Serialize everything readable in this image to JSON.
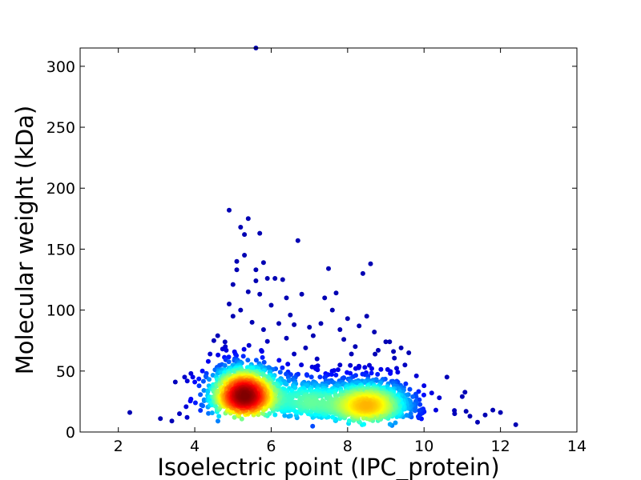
{
  "chart_data": {
    "type": "scatter",
    "title": "",
    "xlabel": "Isoelectric point (IPC_protein)",
    "ylabel": "Molecular weight (kDa)",
    "xlim": [
      1,
      14
    ],
    "ylim": [
      0,
      315
    ],
    "x_ticks": [
      2,
      4,
      6,
      8,
      10,
      12,
      14
    ],
    "y_ticks": [
      0,
      50,
      100,
      150,
      200,
      250,
      300
    ],
    "grid": false,
    "legend": "none",
    "color_scale": "jet (point density: blue = low, red = high)",
    "density_peaks": [
      {
        "x": 5.3,
        "y": 30
      },
      {
        "x": 8.5,
        "y": 22
      }
    ],
    "points": [
      [
        2.3,
        16
      ],
      [
        3.1,
        11
      ],
      [
        3.4,
        9
      ],
      [
        3.6,
        15
      ],
      [
        3.8,
        12
      ],
      [
        3.9,
        27
      ],
      [
        3.9,
        48
      ],
      [
        4.0,
        41
      ],
      [
        4.2,
        50
      ],
      [
        4.3,
        45
      ],
      [
        4.4,
        64
      ],
      [
        4.5,
        75
      ],
      [
        4.6,
        79
      ],
      [
        4.8,
        70
      ],
      [
        4.9,
        105
      ],
      [
        4.9,
        182
      ],
      [
        5.0,
        95
      ],
      [
        5.0,
        121
      ],
      [
        5.1,
        133
      ],
      [
        5.1,
        140
      ],
      [
        5.2,
        100
      ],
      [
        5.2,
        168
      ],
      [
        5.3,
        145
      ],
      [
        5.3,
        162
      ],
      [
        5.4,
        175
      ],
      [
        5.4,
        115
      ],
      [
        5.5,
        90
      ],
      [
        5.6,
        133
      ],
      [
        5.6,
        124
      ],
      [
        5.7,
        163
      ],
      [
        5.7,
        113
      ],
      [
        5.8,
        139
      ],
      [
        5.8,
        84
      ],
      [
        5.9,
        126
      ],
      [
        6.0,
        104
      ],
      [
        6.1,
        126
      ],
      [
        6.2,
        89
      ],
      [
        6.3,
        125
      ],
      [
        6.4,
        110
      ],
      [
        6.4,
        77
      ],
      [
        6.5,
        96
      ],
      [
        6.6,
        88
      ],
      [
        6.7,
        157
      ],
      [
        6.8,
        113
      ],
      [
        6.9,
        69
      ],
      [
        7.0,
        86
      ],
      [
        7.1,
        79
      ],
      [
        7.2,
        60
      ],
      [
        7.3,
        89
      ],
      [
        7.4,
        110
      ],
      [
        7.5,
        134
      ],
      [
        7.6,
        100
      ],
      [
        7.7,
        114
      ],
      [
        7.8,
        84
      ],
      [
        7.9,
        76
      ],
      [
        8.0,
        93
      ],
      [
        8.1,
        64
      ],
      [
        8.2,
        70
      ],
      [
        8.3,
        87
      ],
      [
        8.4,
        130
      ],
      [
        8.5,
        95
      ],
      [
        8.6,
        138
      ],
      [
        8.7,
        82
      ],
      [
        8.8,
        67
      ],
      [
        9.0,
        74
      ],
      [
        9.1,
        74
      ],
      [
        9.2,
        66
      ],
      [
        9.4,
        69
      ],
      [
        9.5,
        55
      ],
      [
        9.6,
        65
      ],
      [
        9.8,
        46
      ],
      [
        10.0,
        38
      ],
      [
        10.2,
        32
      ],
      [
        10.4,
        28
      ],
      [
        10.6,
        45
      ],
      [
        10.8,
        15
      ],
      [
        11.0,
        29
      ],
      [
        11.1,
        17
      ],
      [
        11.2,
        13
      ],
      [
        11.4,
        8
      ],
      [
        11.6,
        14
      ],
      [
        11.8,
        18
      ],
      [
        12.0,
        16
      ],
      [
        12.4,
        6
      ],
      [
        5.6,
        315
      ],
      [
        6.6,
        64
      ],
      [
        7.8,
        55
      ],
      [
        9.2,
        32
      ]
    ]
  }
}
